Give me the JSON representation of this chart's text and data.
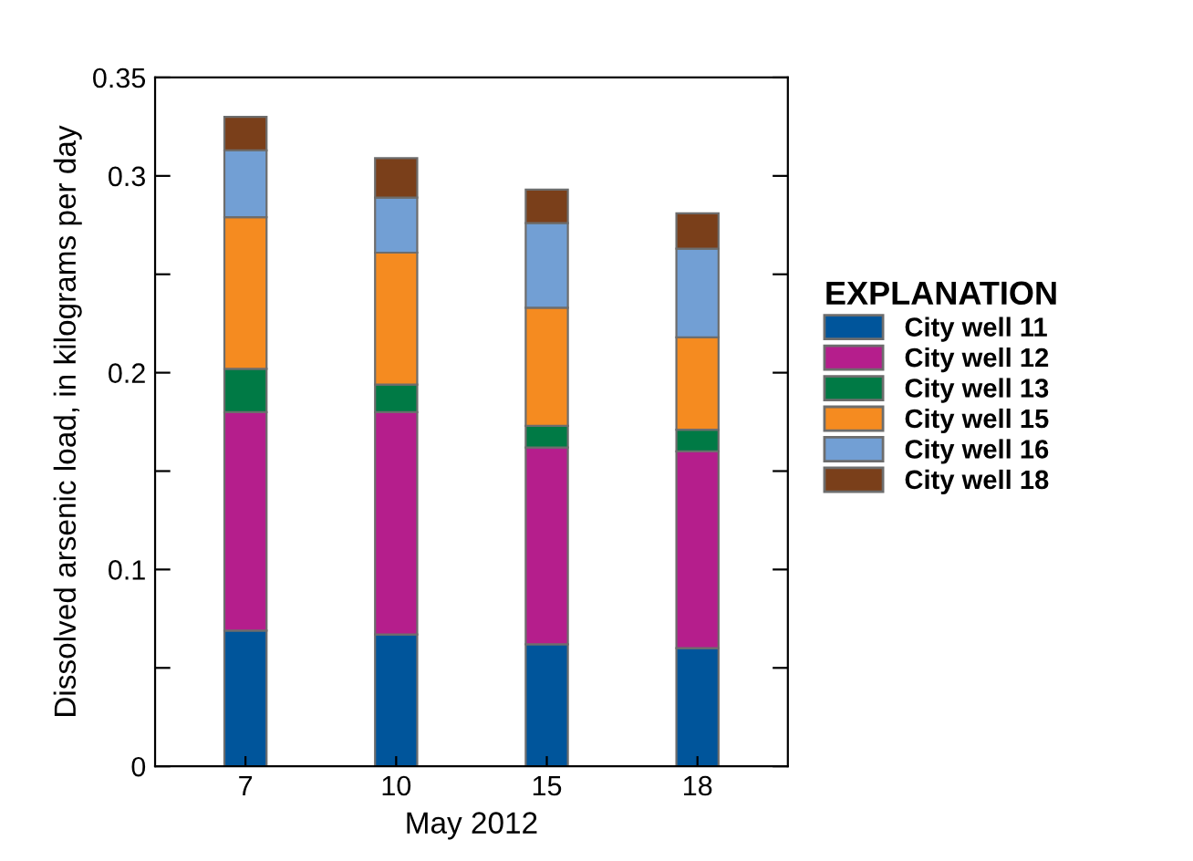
{
  "chart_data": {
    "type": "bar",
    "stacked": true,
    "xlabel": "May 2012",
    "ylabel": "Dissolved arsenic load, in kilograms per day",
    "legend_title": "EXPLANATION",
    "legend": "right",
    "grid": false,
    "categories": [
      "7",
      "10",
      "15",
      "18"
    ],
    "ylim": [
      0,
      0.35
    ],
    "yticks": [
      0,
      0.1,
      0.2,
      0.3,
      0.35,
      {
        "value": 0.05,
        "label": null
      },
      {
        "value": 0.15,
        "label": null
      },
      {
        "value": 0.25,
        "label": null
      }
    ],
    "series": [
      {
        "name": "City well 11",
        "color": "#00559b",
        "values": [
          0.069,
          0.067,
          0.062,
          0.06
        ]
      },
      {
        "name": "City well 12",
        "color": "#b51e8c",
        "values": [
          0.111,
          0.113,
          0.1,
          0.1
        ]
      },
      {
        "name": "City well 13",
        "color": "#007a45",
        "values": [
          0.022,
          0.014,
          0.011,
          0.011
        ]
      },
      {
        "name": "City well 15",
        "color": "#f58b20",
        "values": [
          0.077,
          0.067,
          0.06,
          0.047
        ]
      },
      {
        "name": "City well 16",
        "color": "#729fd4",
        "values": [
          0.034,
          0.028,
          0.043,
          0.045
        ]
      },
      {
        "name": "City well 18",
        "color": "#7a3f1a",
        "values": [
          0.017,
          0.02,
          0.017,
          0.018
        ]
      }
    ]
  }
}
